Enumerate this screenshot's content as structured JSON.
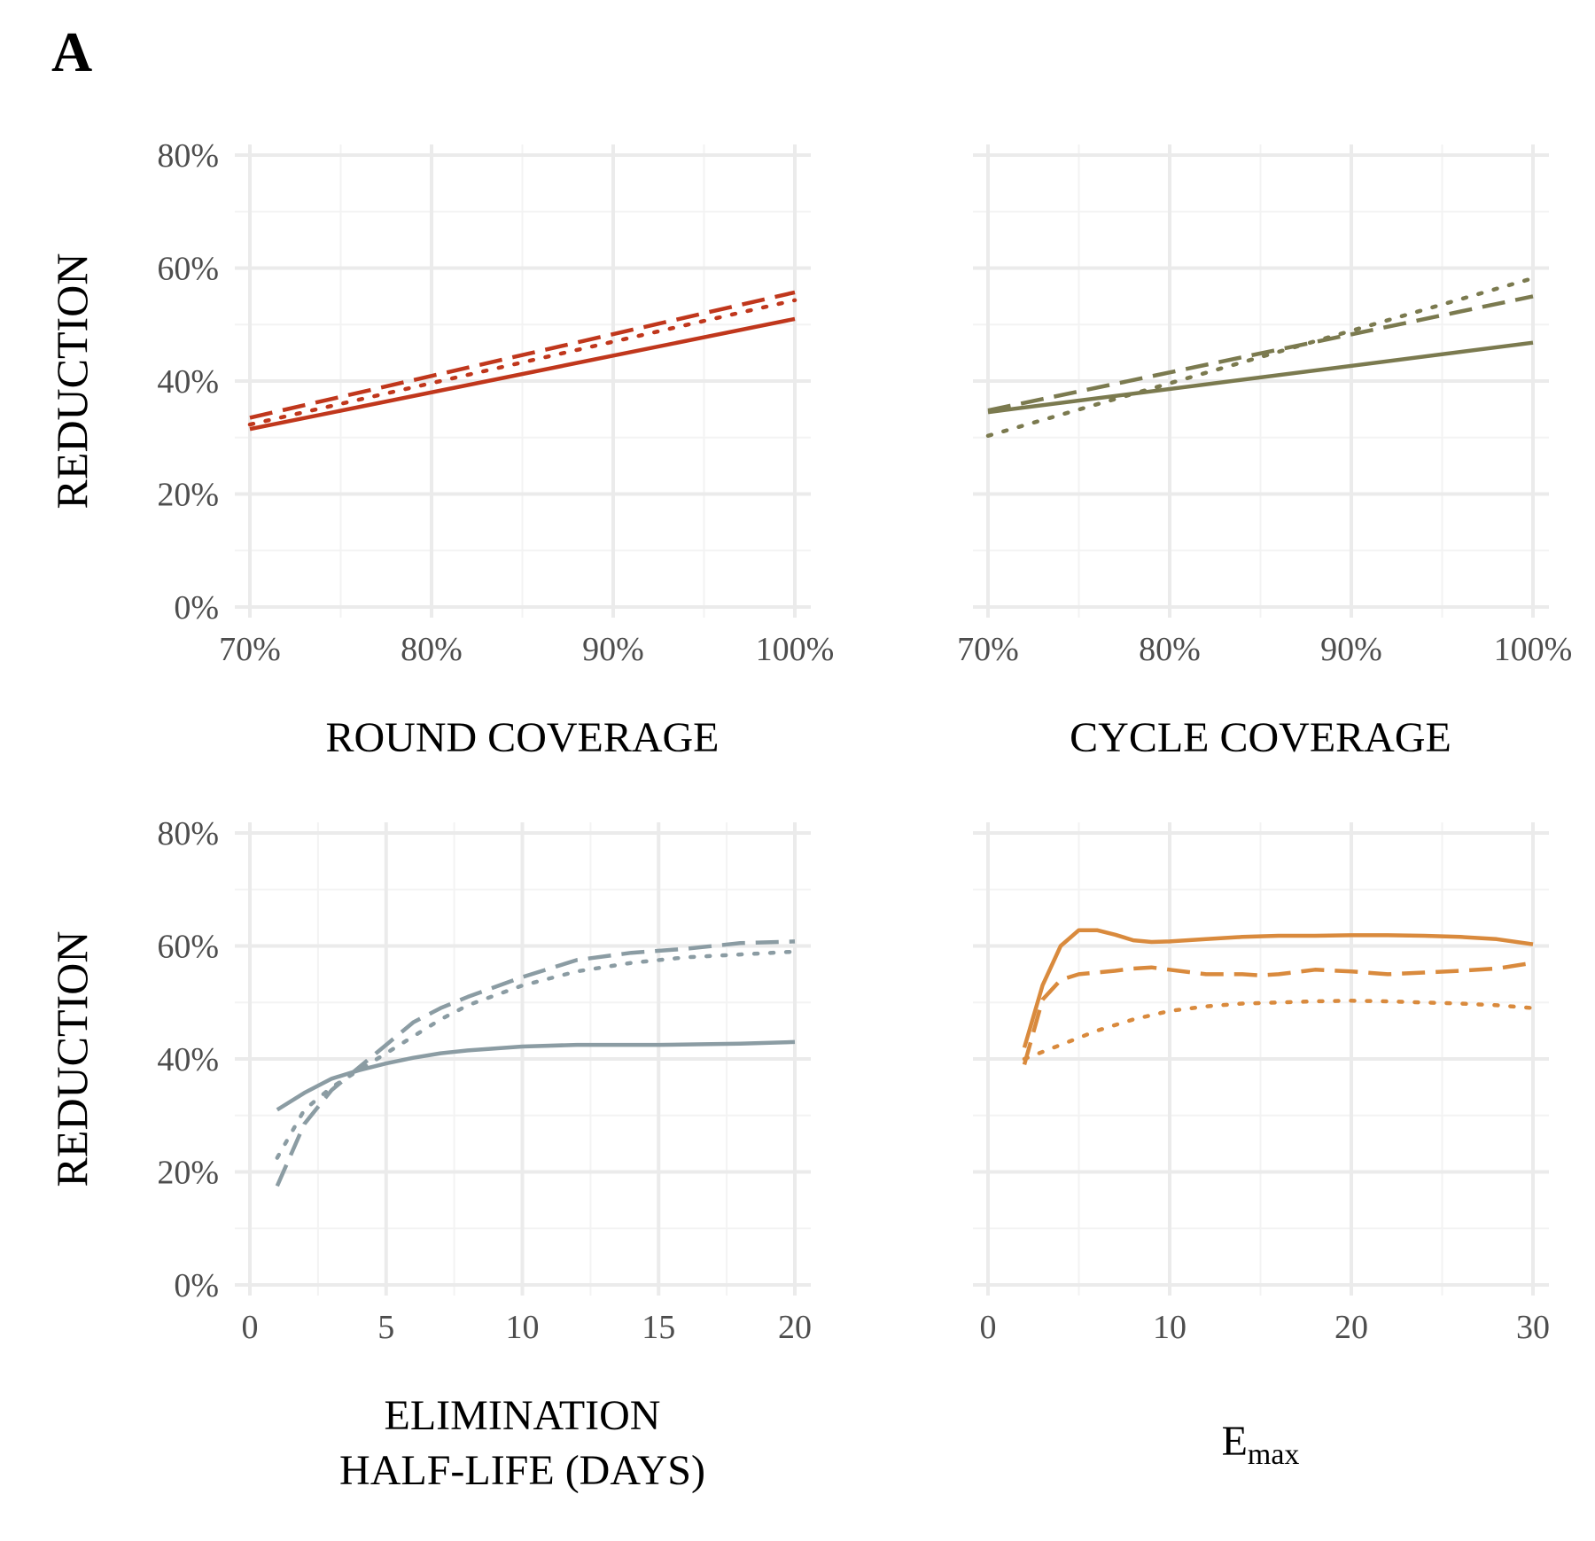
{
  "panel_label": "A",
  "chart_data": [
    {
      "type": "line",
      "id": "round",
      "xlabel": [
        "ROUND  COVERAGE"
      ],
      "ylabel": "REDUCTION",
      "xlim": [
        70,
        100
      ],
      "ylim": [
        0,
        80
      ],
      "xticks": [
        70,
        80,
        90,
        100
      ],
      "xtick_labels": [
        "70%",
        "80%",
        "90%",
        "100%"
      ],
      "yticks": [
        0,
        20,
        40,
        60,
        80
      ],
      "ytick_labels": [
        "0%",
        "20%",
        "40%",
        "60%",
        "80%"
      ],
      "color": "#c0371c",
      "series": [
        {
          "dash": "solid",
          "x": [
            70,
            100
          ],
          "y": [
            31.5,
            51
          ]
        },
        {
          "dash": "dashed",
          "x": [
            70,
            100
          ],
          "y": [
            33.5,
            55.7
          ]
        },
        {
          "dash": "dotted",
          "x": [
            70,
            100
          ],
          "y": [
            32.3,
            54.3
          ]
        }
      ]
    },
    {
      "type": "line",
      "id": "cycle",
      "xlabel": [
        "CYCLE  COVERAGE"
      ],
      "ylabel": "",
      "xlim": [
        70,
        100
      ],
      "ylim": [
        0,
        80
      ],
      "xticks": [
        70,
        80,
        90,
        100
      ],
      "xtick_labels": [
        "70%",
        "80%",
        "90%",
        "100%"
      ],
      "yticks": [
        0,
        20,
        40,
        60,
        80
      ],
      "ytick_labels": [],
      "color": "#7b7a4f",
      "series": [
        {
          "dash": "solid",
          "x": [
            70,
            100
          ],
          "y": [
            34.5,
            46.8
          ]
        },
        {
          "dash": "dashed",
          "x": [
            70,
            100
          ],
          "y": [
            34.8,
            55
          ]
        },
        {
          "dash": "dotted",
          "x": [
            70,
            100
          ],
          "y": [
            30.3,
            58.2
          ]
        }
      ]
    },
    {
      "type": "line",
      "id": "halflife",
      "xlabel": [
        "ELIMINATION",
        "HALF-LIFE  (DAYS)"
      ],
      "ylabel": "REDUCTION",
      "xlim": [
        0,
        20
      ],
      "ylim": [
        0,
        80
      ],
      "xticks": [
        0,
        5,
        10,
        15,
        20
      ],
      "xtick_labels": [
        "0",
        "5",
        "10",
        "15",
        "20"
      ],
      "yticks": [
        0,
        20,
        40,
        60,
        80
      ],
      "ytick_labels": [
        "0%",
        "20%",
        "40%",
        "60%",
        "80%"
      ],
      "color": "#8b9ca3",
      "series": [
        {
          "dash": "solid",
          "x": [
            1,
            2,
            3,
            4,
            5,
            6,
            7,
            8,
            10,
            12,
            15,
            18,
            20
          ],
          "y": [
            31,
            34,
            36.5,
            38,
            39.2,
            40.2,
            41,
            41.5,
            42.2,
            42.5,
            42.5,
            42.7,
            43
          ]
        },
        {
          "dash": "dashed",
          "x": [
            1,
            2,
            3,
            4,
            5,
            6,
            7,
            8,
            10,
            12,
            14,
            16,
            18,
            20
          ],
          "y": [
            17.5,
            28.5,
            34.5,
            38.5,
            42.5,
            46.5,
            49,
            51,
            54.5,
            57.5,
            58.8,
            59.5,
            60.5,
            60.8
          ]
        },
        {
          "dash": "dotted",
          "x": [
            1,
            2,
            3,
            4,
            5,
            6,
            7,
            8,
            10,
            12,
            14,
            16,
            18,
            20
          ],
          "y": [
            22.5,
            31,
            35,
            38,
            41,
            44,
            47,
            49.5,
            53,
            55.5,
            57,
            58,
            58.5,
            59
          ]
        }
      ]
    },
    {
      "type": "line",
      "id": "emax",
      "xlabel": [
        "E",
        "max"
      ],
      "ylabel": "",
      "xlim": [
        0,
        30
      ],
      "ylim": [
        0,
        80
      ],
      "xticks": [
        0,
        10,
        20,
        30
      ],
      "xtick_labels": [
        "0",
        "10",
        "20",
        "30"
      ],
      "yticks": [
        0,
        20,
        40,
        60,
        80
      ],
      "ytick_labels": [],
      "color": "#d98a3d",
      "series": [
        {
          "dash": "solid",
          "x": [
            2,
            3,
            4,
            5,
            6,
            7,
            8,
            9,
            10,
            12,
            14,
            16,
            18,
            20,
            22,
            24,
            26,
            28,
            30
          ],
          "y": [
            42,
            53,
            60,
            62.8,
            62.8,
            62,
            61,
            60.7,
            60.8,
            61.2,
            61.6,
            61.8,
            61.8,
            61.9,
            61.9,
            61.8,
            61.6,
            61.2,
            60.3
          ]
        },
        {
          "dash": "dashed",
          "x": [
            2,
            3,
            4,
            5,
            6,
            7,
            8,
            9,
            10,
            12,
            14,
            15,
            16,
            18,
            20,
            22,
            24,
            26,
            28,
            30
          ],
          "y": [
            39,
            50.5,
            54,
            55,
            55.3,
            55.6,
            56,
            56.2,
            55.8,
            55,
            55,
            54.8,
            55,
            55.8,
            55.5,
            55,
            55.3,
            55.6,
            56,
            57
          ]
        },
        {
          "dash": "dotted",
          "x": [
            2,
            4,
            6,
            8,
            10,
            12,
            14,
            16,
            18,
            20,
            22,
            24,
            26,
            28,
            30
          ],
          "y": [
            40,
            42.5,
            45,
            47,
            48.5,
            49.3,
            49.8,
            50,
            50.2,
            50.3,
            50.2,
            50,
            49.8,
            49.5,
            49
          ]
        }
      ]
    }
  ]
}
